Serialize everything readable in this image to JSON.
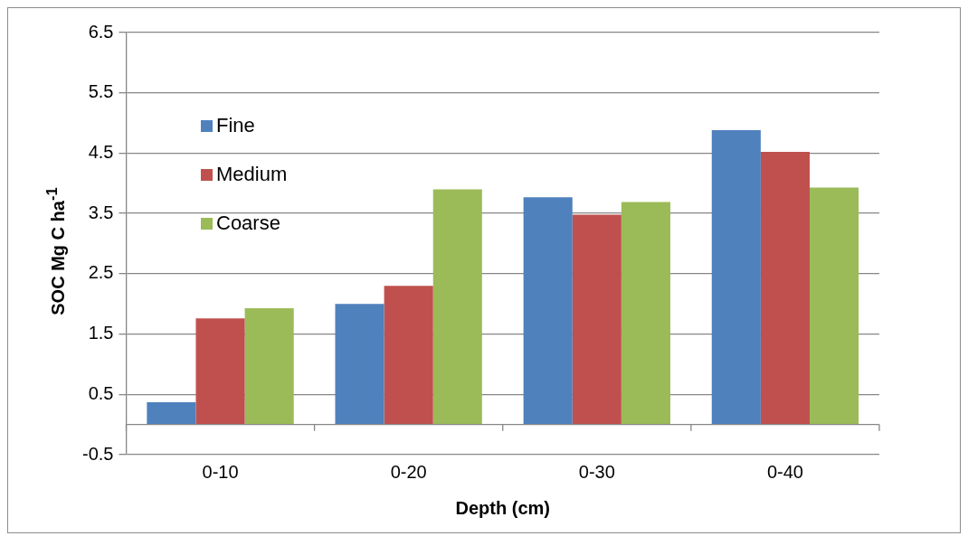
{
  "chart_data": {
    "type": "bar",
    "xlabel": "Depth (cm)",
    "ylabel": "SOC  Mg C ha$^{-1}$",
    "categories": [
      "0-10",
      "0-20",
      "0-30",
      "0-40"
    ],
    "series": [
      {
        "name": "Fine",
        "color": "#4f81bd",
        "values": [
          0.37,
          2.0,
          3.77,
          4.88
        ]
      },
      {
        "name": "Medium",
        "color": "#c0504d",
        "values": [
          1.76,
          2.3,
          3.48,
          4.52
        ]
      },
      {
        "name": "Coarse",
        "color": "#9bbb59",
        "values": [
          1.93,
          3.9,
          3.69,
          3.93
        ]
      }
    ],
    "ylim": [
      -0.5,
      6.5
    ],
    "yticks": [
      -0.5,
      0.5,
      1.5,
      2.5,
      3.5,
      4.5,
      5.5,
      6.5
    ],
    "grid": "y",
    "legend": "top left"
  }
}
